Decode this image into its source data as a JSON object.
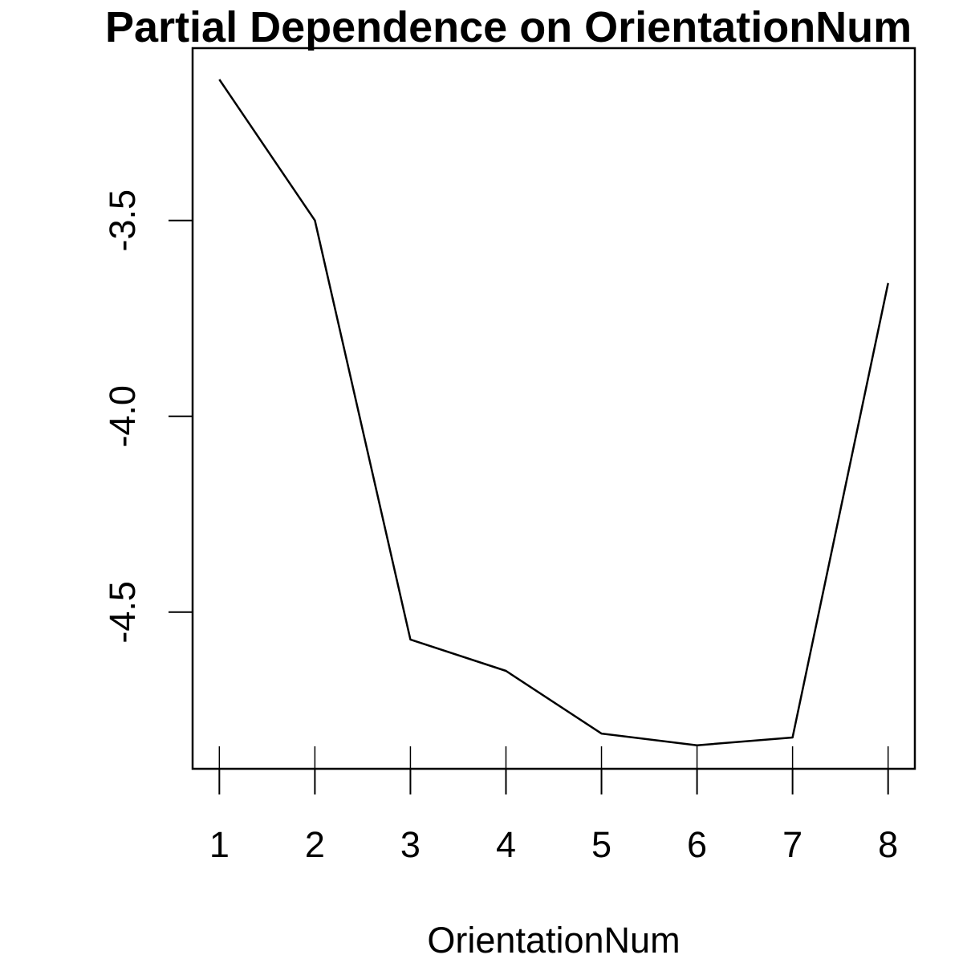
{
  "chart_data": {
    "type": "line",
    "title": "Partial Dependence on OrientationNum",
    "xlabel": "OrientationNum",
    "ylabel": "",
    "x": [
      1,
      2,
      3,
      4,
      5,
      6,
      7,
      8
    ],
    "y": [
      -3.14,
      -3.5,
      -4.57,
      -4.65,
      -4.81,
      -4.84,
      -4.82,
      -3.66
    ],
    "rug": [
      1,
      2,
      3,
      4,
      5,
      6,
      7,
      8
    ],
    "x_ticks": [
      "1",
      "2",
      "3",
      "4",
      "5",
      "6",
      "7",
      "8"
    ],
    "y_ticks": [
      "-3.5",
      "-4.0",
      "-4.5"
    ],
    "y_tick_values": [
      -3.5,
      -4.0,
      -4.5
    ],
    "xlim": [
      0.72,
      8.28
    ],
    "ylim": [
      -4.9,
      -3.06
    ],
    "grid": false,
    "legend": "none"
  }
}
